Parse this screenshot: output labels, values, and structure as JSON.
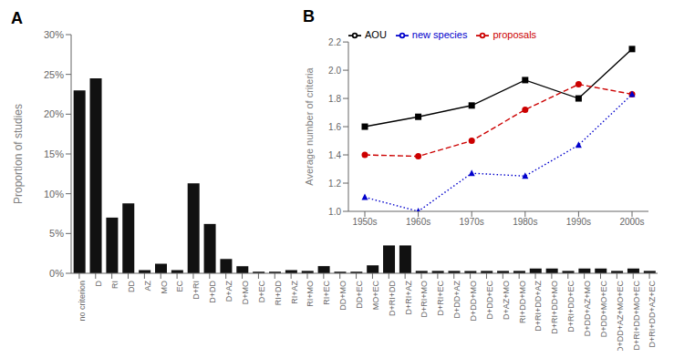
{
  "chart_data": [
    {
      "type": "bar",
      "title": "A",
      "categories": [
        "no criterion",
        "D",
        "RI",
        "DD",
        "AZ",
        "MO",
        "EC",
        "D+RI",
        "D+DD",
        "D+AZ",
        "D+MO",
        "D+EC",
        "RI+DD",
        "RI+AZ",
        "RI+MO",
        "RI+EC",
        "DD+MO",
        "DD+EC",
        "MO+EC",
        "D+RI+DD",
        "D+RI+AZ",
        "D+RI+MO",
        "D+RI+EC",
        "D+DD+AZ",
        "D+DD+MO",
        "D+DD+EC",
        "D+AZ+MO",
        "RI+DD+MO",
        "D+RI+DD+AZ",
        "D+RI+DD+MO",
        "D+RI+DD+EC",
        "D+DD+AZ+MO",
        "D+DD+MO+EC",
        "D+DD+AZ+MO+EC",
        "D+RI+DD+MO+EC",
        "D+RI+DD+AZ+EC"
      ],
      "values": [
        23.0,
        24.5,
        7.0,
        8.8,
        0.4,
        1.2,
        0.4,
        11.3,
        6.2,
        1.8,
        0.9,
        0.2,
        0.2,
        0.4,
        0.3,
        0.9,
        0.2,
        0.2,
        1.0,
        3.5,
        3.5,
        0.3,
        0.3,
        0.3,
        0.3,
        0.3,
        0.3,
        0.3,
        0.6,
        0.6,
        0.3,
        0.6,
        0.6,
        0.3,
        0.6,
        0.3
      ],
      "color": "#111111",
      "ylabel": "Proportion of studies",
      "ylim": [
        0,
        30
      ],
      "yticks": [
        {
          "value": 0,
          "label": "0%"
        },
        {
          "value": 5,
          "label": "5%"
        },
        {
          "value": 10,
          "label": "10%"
        },
        {
          "value": 15,
          "label": "15%"
        },
        {
          "value": 20,
          "label": "20%"
        },
        {
          "value": 25,
          "label": "25%"
        },
        {
          "value": 30,
          "label": "30%"
        }
      ],
      "grid": false
    },
    {
      "type": "line",
      "title": "B",
      "categories": [
        "1950s",
        "1960s",
        "1970s",
        "1980s",
        "1990s",
        "2000s"
      ],
      "series": [
        {
          "name": "AOU",
          "color": "#000000",
          "marker": "square",
          "line_style": "solid",
          "values": [
            1.6,
            1.67,
            1.75,
            1.93,
            1.8,
            2.15
          ]
        },
        {
          "name": "proposals",
          "color": "#cc0000",
          "marker": "circle",
          "line_style": "dashed",
          "values": [
            1.4,
            1.39,
            1.5,
            1.72,
            1.9,
            1.83
          ]
        },
        {
          "name": "new species",
          "color": "#0000cc",
          "marker": "triangle",
          "line_style": "dotted",
          "values": [
            1.1,
            1.0,
            1.27,
            1.25,
            1.47,
            1.83
          ]
        }
      ],
      "ylabel": "Average number of criteria",
      "ylim": [
        1.0,
        2.2
      ],
      "yticks": [
        {
          "value": 1.0,
          "label": "1.0"
        },
        1.2,
        1.4,
        1.6,
        1.8,
        {
          "value": 2.0,
          "label": "2.0"
        },
        2.2
      ],
      "legend": "upper left",
      "grid": false
    }
  ]
}
